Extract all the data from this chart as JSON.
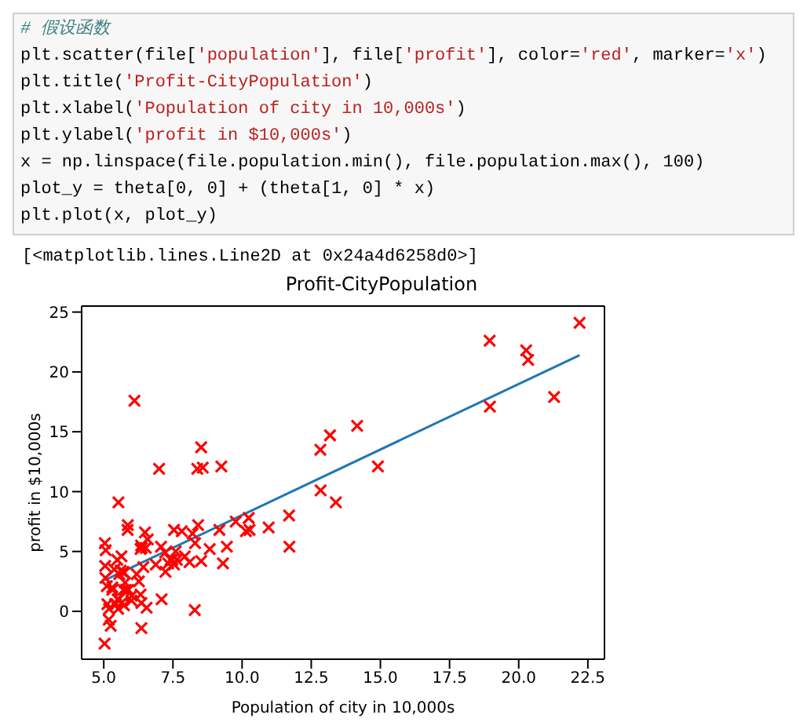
{
  "chart_data": {
    "type": "scatter",
    "title": "Profit-CityPopulation",
    "xlabel": "Population of city in 10,000s",
    "ylabel": "profit in $10,000s",
    "annotations": [
      "# 假设函数",
      "plt.scatter(file['population'], file['profit'], color='red', marker='x')",
      "plt.title('Profit-CityPopulation')",
      "plt.xlabel('Population of city in 10,000s')",
      "plt.ylabel('profit in $10,000s')",
      "x = np.linspace(file.population.min(), file.population.max(), 100)",
      "plot_y = theta[0, 0] + (theta[1, 0] * x)",
      "plt.plot(x, plot_y)",
      "[<matplotlib.lines.Line2D at 0x24a4d6258d0>]"
    ],
    "xlim": [
      4.2,
      23.1
    ],
    "ylim": [
      -4.0,
      25.5
    ],
    "xticks": [
      {
        "value": 5,
        "label": "5.0"
      },
      {
        "value": 7.5,
        "label": "7.5"
      },
      {
        "value": 10,
        "label": "10.0"
      },
      {
        "value": 12.5,
        "label": "12.5"
      },
      {
        "value": 15,
        "label": "15.0"
      },
      {
        "value": 17.5,
        "label": "17.5"
      },
      {
        "value": 20,
        "label": "20.0"
      },
      {
        "value": 22.5,
        "label": "22.5"
      }
    ],
    "yticks": [
      0,
      5,
      10,
      15,
      20,
      25
    ],
    "marker": "cross",
    "series": [
      {
        "color": "#ff0000",
        "x": [
          6.11,
          5.53,
          8.52,
          7.0,
          5.86,
          8.38,
          7.48,
          8.58,
          6.49,
          5.05,
          5.71,
          14.16,
          5.73,
          8.41,
          5.64,
          5.38,
          6.37,
          5.13,
          6.43,
          7.07,
          6.19,
          20.27,
          5.49,
          6.33,
          5.56,
          18.95,
          12.83,
          10.96,
          13.18,
          22.2,
          5.25,
          6.59,
          9.25,
          5.89,
          8.21,
          7.93,
          8.1,
          5.61,
          12.84,
          6.35,
          5.41,
          6.88,
          11.71,
          5.77,
          7.82,
          7.09,
          5.07,
          5.8,
          11.7,
          5.54,
          7.54,
          5.31,
          7.42,
          7.6,
          6.33,
          6.36,
          6.27,
          5.64,
          9.31,
          9.45,
          8.83,
          5.18,
          21.28,
          14.91,
          18.96,
          7.22,
          8.3,
          10.24,
          5.5,
          20.34,
          10.14,
          7.33,
          6.01,
          7.23,
          5.03,
          6.55,
          7.54,
          5.04,
          10.27,
          5.11,
          5.73,
          5.19,
          6.36,
          9.77,
          6.52,
          8.52,
          9.18,
          6.0,
          5.52,
          5.06,
          5.71,
          7.64,
          5.87,
          5.31,
          8.29,
          13.39,
          5.44
        ],
        "values": [
          17.6,
          9.1,
          13.7,
          11.9,
          6.8,
          11.9,
          4.3,
          12.0,
          6.6,
          3.8,
          3.3,
          15.5,
          3.2,
          7.2,
          0.7,
          3.5,
          5.3,
          0.6,
          3.7,
          5.4,
          3.1,
          21.8,
          4.3,
          5.2,
          3.1,
          22.6,
          13.5,
          7.0,
          14.7,
          24.1,
          -1.2,
          6.0,
          12.1,
          1.8,
          6.5,
          4.6,
          4.1,
          3.4,
          10.1,
          5.5,
          0.6,
          3.9,
          5.4,
          2.4,
          6.7,
          1.0,
          5.1,
          1.8,
          8.0,
          1.0,
          6.8,
          1.8,
          4.3,
          5.0,
          1.4,
          -1.4,
          2.5,
          4.6,
          4.0,
          5.4,
          5.2,
          -0.7,
          17.9,
          12.1,
          17.1,
          4.9,
          5.7,
          7.8,
          1.0,
          21.0,
          6.7,
          4.0,
          1.3,
          3.3,
          -2.7,
          0.3,
          3.9,
          5.7,
          6.8,
          2.1,
          0.5,
          0.2,
          0.7,
          7.5,
          5.3,
          4.2,
          6.8,
          0.9,
          0.2,
          2.8,
          1.8,
          4.3,
          7.2,
          2.0,
          0.1,
          9.1,
          0.6
        ]
      },
      {
        "type": "line",
        "color": "#1f77b4",
        "marker": "none",
        "x": [
          5.03,
          22.2
        ],
        "values": [
          2.6,
          21.4
        ]
      }
    ]
  }
}
